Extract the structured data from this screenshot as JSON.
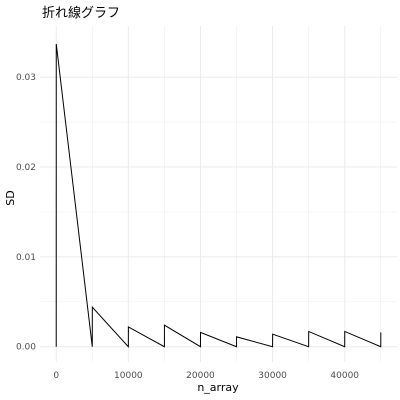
{
  "chart_data": {
    "type": "line",
    "title": "折れ線グラフ",
    "xlabel": "n_array",
    "ylabel": "SD",
    "xlim": [
      -2250,
      47250
    ],
    "ylim": [
      -0.0017,
      0.0357
    ],
    "x_ticks": [
      0,
      10000,
      20000,
      30000,
      40000
    ],
    "x_tick_labels": [
      "0",
      "10000",
      "20000",
      "30000",
      "40000"
    ],
    "y_ticks": [
      0,
      0.01,
      0.02,
      0.03
    ],
    "y_tick_labels": [
      "0.00",
      "0.01",
      "0.02",
      "0.03"
    ],
    "grid": true,
    "legend": "none",
    "line_color": "#000000",
    "grid_color": "#ebebeb",
    "series": [
      {
        "x": [
          0,
          5,
          5000,
          5005,
          10000,
          10005,
          15000,
          15005,
          20000,
          20005,
          25000,
          25005,
          30000,
          30005,
          35000,
          35005,
          40000,
          40005,
          45000,
          45005
        ],
        "y": [
          0.0,
          0.0337,
          0.0,
          0.0044,
          0.0,
          0.0022,
          0.0,
          0.0024,
          0.0,
          0.0016,
          0.0,
          0.0011,
          0.0,
          0.0014,
          0.0,
          0.0017,
          0.0,
          0.0017,
          0.0,
          0.0016
        ]
      }
    ]
  }
}
